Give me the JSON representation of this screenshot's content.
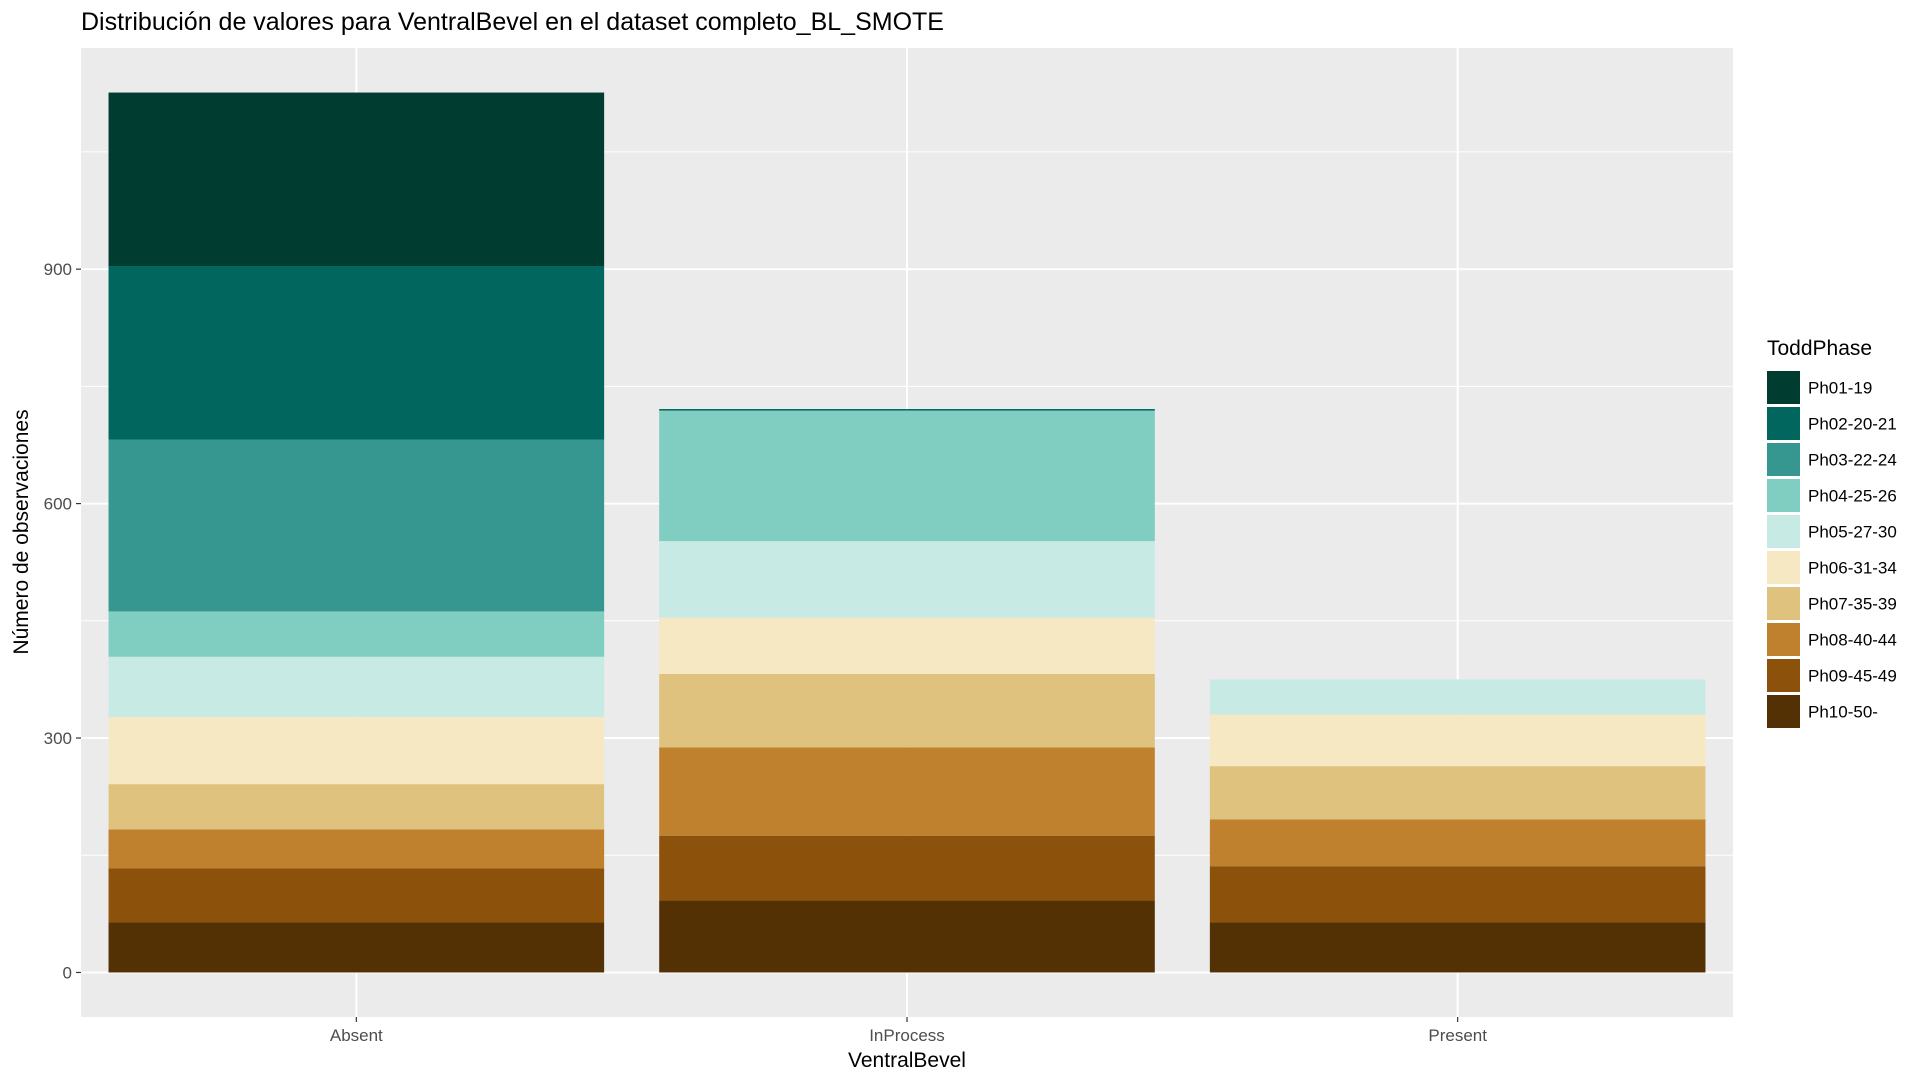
{
  "chart_data": {
    "type": "bar",
    "stacked": true,
    "title": "Distribución de valores para VentralBevel en el dataset completo_BL_SMOTE",
    "xlabel": "VentralBevel",
    "ylabel": "Número de observaciones",
    "categories": [
      "Absent",
      "InProcess",
      "Present"
    ],
    "ylim": [
      -57,
      1183
    ],
    "yticks": [
      0,
      300,
      600,
      900
    ],
    "grid": true,
    "legend": {
      "title": "ToddPhase",
      "position": "right"
    },
    "series": [
      {
        "name": "Ph01-19",
        "color": "#003c30",
        "values": [
          222,
          0,
          0
        ]
      },
      {
        "name": "Ph02-20-21",
        "color": "#01665e",
        "values": [
          222,
          2,
          0
        ]
      },
      {
        "name": "Ph03-22-24",
        "color": "#35978f",
        "values": [
          220,
          0,
          0
        ]
      },
      {
        "name": "Ph04-25-26",
        "color": "#80cdc1",
        "values": [
          58,
          167,
          0
        ]
      },
      {
        "name": "Ph05-27-30",
        "color": "#c7eae5",
        "values": [
          77,
          98,
          45
        ]
      },
      {
        "name": "Ph06-31-34",
        "color": "#f6e8c3",
        "values": [
          86,
          72,
          66
        ]
      },
      {
        "name": "Ph07-35-39",
        "color": "#dfc27d",
        "values": [
          58,
          94,
          68
        ]
      },
      {
        "name": "Ph08-40-44",
        "color": "#bf812d",
        "values": [
          50,
          113,
          60
        ]
      },
      {
        "name": "Ph09-45-49",
        "color": "#8c510a",
        "values": [
          69,
          83,
          72
        ]
      },
      {
        "name": "Ph10-50-",
        "color": "#543005",
        "values": [
          64,
          92,
          64
        ]
      }
    ]
  }
}
